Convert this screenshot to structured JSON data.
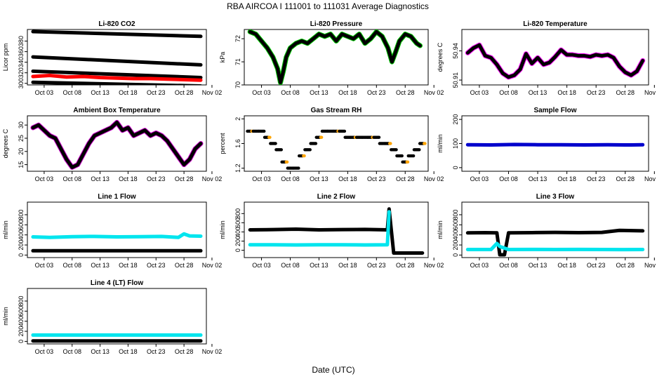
{
  "figure": {
    "title": "RBA   AIRCOA I   111001 to 111031   Average Diagnostics",
    "xlabel": "Date (UTC)",
    "x_ticks": [
      "Oct 03",
      "Oct 08",
      "Oct 13",
      "Oct 18",
      "Oct 23",
      "Oct 28",
      "Nov 02"
    ]
  },
  "chart_data": [
    {
      "type": "scatter",
      "title": "Li-820 CO2",
      "ylabel": "Licor ppm",
      "xlim": [
        0,
        32
      ],
      "ylim": [
        297,
        402
      ],
      "yticks": [
        300,
        320,
        340,
        360,
        380
      ],
      "series": [
        {
          "name": "ref-high",
          "color": "#000000",
          "x": [
            1,
            31
          ],
          "y": [
            398,
            389
          ]
        },
        {
          "name": "ref-mid",
          "color": "#000000",
          "x": [
            1,
            31
          ],
          "y": [
            350,
            335
          ]
        },
        {
          "name": "ref-low",
          "color": "#000000",
          "x": [
            1,
            31
          ],
          "y": [
            323,
            311
          ]
        },
        {
          "name": "sample",
          "color": "#ff0000",
          "x": [
            1,
            4,
            7,
            10,
            13,
            16,
            19,
            22,
            25,
            28,
            31
          ],
          "y": [
            313,
            315,
            312,
            313,
            311,
            310,
            309,
            309,
            308,
            307,
            306
          ]
        },
        {
          "name": "ref-zero",
          "color": "#000000",
          "x": [
            1,
            31
          ],
          "y": [
            302,
            295
          ]
        }
      ]
    },
    {
      "type": "line",
      "title": "Li-820 Pressure",
      "ylabel": "kPa",
      "xlim": [
        0,
        32
      ],
      "ylim": [
        70.0,
        72.4
      ],
      "yticks": [
        70.0,
        71.0,
        72.0
      ],
      "series": [
        {
          "name": "pressure",
          "color": "#000000",
          "halo": "#00cc00",
          "x": [
            1,
            2,
            3,
            4,
            5,
            5.8,
            6.3,
            6.8,
            7.3,
            8,
            9,
            10,
            11,
            12,
            13,
            14,
            15,
            16,
            17,
            18,
            19,
            20,
            21,
            22,
            23,
            24,
            25,
            25.7,
            26.3,
            27,
            28,
            29,
            30,
            30.6
          ],
          "y": [
            72.3,
            72.2,
            71.9,
            71.6,
            71.2,
            70.7,
            70.1,
            70.6,
            71.2,
            71.6,
            71.8,
            71.9,
            71.8,
            72.0,
            72.2,
            72.1,
            72.2,
            71.9,
            72.2,
            72.1,
            72.0,
            72.2,
            71.8,
            72.0,
            72.3,
            72.1,
            71.6,
            71.0,
            71.4,
            71.9,
            72.2,
            72.1,
            71.8,
            71.7
          ]
        }
      ]
    },
    {
      "type": "line",
      "title": "Li-820 Temperature",
      "ylabel": "degrees C",
      "xlim": [
        0,
        32
      ],
      "ylim": [
        50.905,
        50.962
      ],
      "yticks": [
        50.91,
        50.94
      ],
      "series": [
        {
          "name": "temperature",
          "color": "#000000",
          "halo": "#ff00ff",
          "x": [
            1,
            2,
            3,
            4,
            5,
            6,
            7,
            8,
            9,
            10,
            11,
            12,
            13,
            14,
            15,
            16,
            17,
            18,
            19,
            20,
            21,
            22,
            23,
            24,
            25,
            26,
            27,
            28,
            29,
            30,
            31
          ],
          "y": [
            50.938,
            50.943,
            50.946,
            50.935,
            50.933,
            50.926,
            50.917,
            50.913,
            50.915,
            50.921,
            50.937,
            50.927,
            50.933,
            50.926,
            50.928,
            50.934,
            50.941,
            50.936,
            50.936,
            50.935,
            50.935,
            50.934,
            50.936,
            50.935,
            50.936,
            50.933,
            50.924,
            50.918,
            50.915,
            50.919,
            50.93
          ]
        }
      ]
    },
    {
      "type": "line",
      "title": "Ambient Box Temperature",
      "ylabel": "degrees C",
      "xlim": [
        0,
        32
      ],
      "ylim": [
        12.5,
        33.5
      ],
      "yticks": [
        15,
        20,
        25,
        30
      ],
      "series": [
        {
          "name": "box-temp",
          "color": "#000000",
          "halo": "#cc00cc",
          "x": [
            1,
            2,
            3,
            4,
            5,
            6,
            7,
            8,
            9,
            10,
            11,
            12,
            13,
            14,
            15,
            16,
            17,
            18,
            19,
            20,
            21,
            22,
            23,
            24,
            25,
            26,
            27,
            28,
            29,
            30,
            31
          ],
          "y": [
            29,
            30,
            28,
            26,
            25,
            21,
            17,
            14,
            15,
            19,
            23,
            26,
            27,
            28,
            29,
            31,
            28,
            29,
            26,
            27,
            28,
            26,
            27,
            26,
            24,
            21,
            18,
            15,
            17,
            21,
            23
          ]
        }
      ]
    },
    {
      "type": "scatter",
      "title": "Gas Stream RH",
      "ylabel": "percent",
      "xlim": [
        0,
        32
      ],
      "ylim": [
        1.15,
        2.05
      ],
      "yticks": [
        1.2,
        1.6,
        2.0
      ],
      "series": [
        {
          "name": "rh-levels",
          "color": "#000000",
          "halo": "#ffa500",
          "x": [
            1,
            2,
            3,
            4,
            5,
            6,
            7,
            8,
            9,
            10,
            11,
            12,
            13,
            14,
            15,
            16,
            17,
            18,
            19,
            20,
            21,
            22,
            23,
            24,
            25,
            26,
            27,
            28,
            29,
            30,
            31
          ],
          "y": [
            1.8,
            1.8,
            1.8,
            1.7,
            1.6,
            1.5,
            1.3,
            1.2,
            1.2,
            1.4,
            1.5,
            1.6,
            1.7,
            1.8,
            1.8,
            1.8,
            1.8,
            1.7,
            1.7,
            1.7,
            1.7,
            1.7,
            1.7,
            1.6,
            1.6,
            1.5,
            1.4,
            1.3,
            1.4,
            1.5,
            1.6
          ]
        }
      ]
    },
    {
      "type": "scatter",
      "title": "Sample Flow",
      "ylabel": "ml/min",
      "xlim": [
        0,
        32
      ],
      "ylim": [
        -15,
        215
      ],
      "yticks": [
        0,
        100,
        200
      ],
      "series": [
        {
          "name": "sample-flow",
          "color": "#0000cc",
          "x": [
            1,
            5,
            9,
            13,
            17,
            21,
            25,
            29,
            31
          ],
          "y": [
            95,
            94,
            96,
            95,
            95,
            94,
            95,
            94,
            95
          ]
        }
      ]
    },
    {
      "type": "scatter",
      "title": "Line 1 Flow",
      "ylabel": "ml/min",
      "xlim": [
        0,
        32
      ],
      "ylim": [
        -50,
        1050
      ],
      "yticks": [
        0,
        200,
        400,
        600,
        800
      ],
      "series": [
        {
          "name": "line1-a",
          "color": "#00e5ee",
          "x": [
            1,
            4,
            8,
            12,
            16,
            20,
            24,
            27,
            28,
            29,
            31
          ],
          "y": [
            360,
            350,
            365,
            370,
            360,
            365,
            370,
            350,
            420,
            380,
            375
          ]
        },
        {
          "name": "line1-b",
          "color": "#000000",
          "x": [
            1,
            31
          ],
          "y": [
            85,
            85
          ]
        }
      ]
    },
    {
      "type": "scatter",
      "title": "Line 2 Flow",
      "ylabel": "ml/min",
      "xlim": [
        0,
        32
      ],
      "ylim": [
        -160,
        1050
      ],
      "yticks": [
        0,
        200,
        400,
        600,
        800
      ],
      "series": [
        {
          "name": "line2-a",
          "color": "#000000",
          "x": [
            1,
            5,
            9,
            13,
            17,
            21,
            24.9,
            25.2,
            26,
            31
          ],
          "y": [
            445,
            450,
            460,
            445,
            450,
            455,
            445,
            900,
            -60,
            -60
          ]
        },
        {
          "name": "line2-b",
          "color": "#00e5ee",
          "x": [
            1,
            5,
            9,
            13,
            17,
            21,
            24.9,
            25.2
          ],
          "y": [
            120,
            120,
            115,
            120,
            120,
            115,
            120,
            840
          ]
        }
      ]
    },
    {
      "type": "scatter",
      "title": "Line 3 Flow",
      "ylabel": "ml/min",
      "xlim": [
        0,
        32
      ],
      "ylim": [
        -50,
        1050
      ],
      "yticks": [
        0,
        200,
        400,
        600,
        800
      ],
      "series": [
        {
          "name": "line3-a",
          "color": "#000000",
          "x": [
            1,
            4,
            6,
            6.5,
            7.3,
            8,
            12,
            16,
            20,
            24,
            27,
            31
          ],
          "y": [
            440,
            445,
            440,
            5,
            5,
            440,
            445,
            450,
            445,
            450,
            490,
            480
          ]
        },
        {
          "name": "line3-b",
          "color": "#00e5ee",
          "x": [
            1,
            5,
            6,
            6.5,
            8,
            12,
            16,
            20,
            24,
            27,
            31
          ],
          "y": [
            110,
            110,
            230,
            170,
            110,
            112,
            110,
            112,
            110,
            108,
            110
          ]
        }
      ]
    },
    {
      "type": "scatter",
      "title": "Line 4 (LT) Flow",
      "ylabel": "ml/min",
      "xlim": [
        0,
        32
      ],
      "ylim": [
        -50,
        1050
      ],
      "yticks": [
        0,
        200,
        400,
        600,
        800
      ],
      "series": [
        {
          "name": "line4-a",
          "color": "#00e5ee",
          "x": [
            1,
            31
          ],
          "y": [
            125,
            125
          ]
        },
        {
          "name": "line4-b",
          "color": "#000000",
          "x": [
            1,
            31
          ],
          "y": [
            10,
            10
          ]
        }
      ]
    }
  ]
}
